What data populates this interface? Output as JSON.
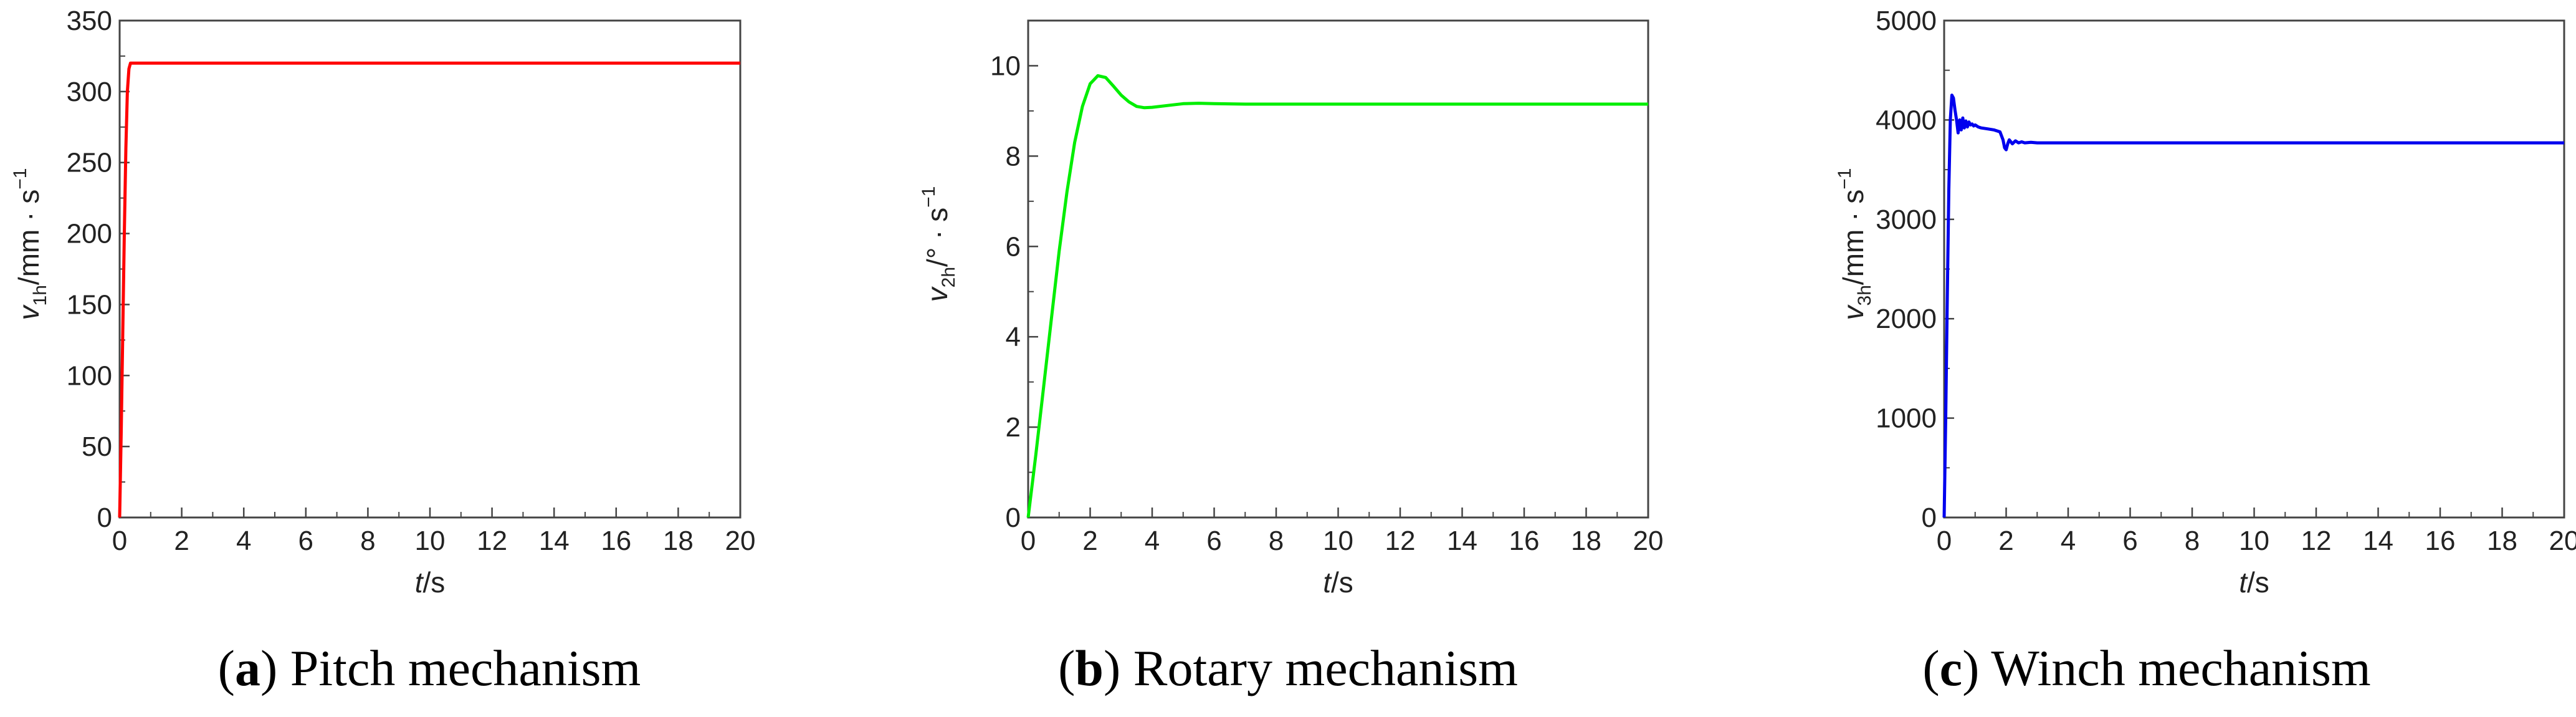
{
  "chart_data": [
    {
      "type": "line",
      "caption": {
        "letter": "a",
        "text": "Pitch mechanism"
      },
      "xlabel": {
        "var": "t",
        "unit": "/s"
      },
      "ylabel": {
        "var": "v",
        "sub": "1h",
        "unit": "/mm · s",
        "sup": "−1"
      },
      "xlim": [
        0,
        20
      ],
      "ylim": [
        0,
        350
      ],
      "xticks": [
        0,
        2,
        4,
        6,
        8,
        10,
        12,
        14,
        16,
        18,
        20
      ],
      "yticks": [
        0,
        50,
        100,
        150,
        200,
        250,
        300,
        350
      ],
      "color": "#ff0000",
      "series": [
        {
          "x": [
            0,
            0.05,
            0.1,
            0.15,
            0.2,
            0.25,
            0.3,
            0.35,
            0.4,
            0.5,
            0.8,
            1.5,
            3,
            6,
            10,
            15,
            20
          ],
          "y": [
            0,
            60,
            130,
            200,
            260,
            300,
            316,
            320,
            320,
            320,
            320,
            320,
            320,
            320,
            320,
            320,
            320
          ]
        }
      ]
    },
    {
      "type": "line",
      "caption": {
        "letter": "b",
        "text": "Rotary mechanism"
      },
      "xlabel": {
        "var": "t",
        "unit": "/s"
      },
      "ylabel": {
        "var": "v",
        "sub": "2h",
        "unit": "/° · s",
        "sup": "−1"
      },
      "xlim": [
        0,
        20
      ],
      "ylim": [
        0,
        11
      ],
      "xticks": [
        0,
        2,
        4,
        6,
        8,
        10,
        12,
        14,
        16,
        18,
        20
      ],
      "yticks": [
        0,
        2,
        4,
        6,
        8,
        10
      ],
      "color": "#00ee00",
      "series": [
        {
          "x": [
            0,
            0.25,
            0.5,
            0.75,
            1.0,
            1.25,
            1.5,
            1.75,
            2.0,
            2.25,
            2.5,
            2.75,
            3.0,
            3.25,
            3.5,
            3.75,
            4.0,
            4.5,
            5.0,
            5.5,
            6.0,
            7.0,
            8.0,
            10,
            14,
            20
          ],
          "y": [
            0,
            1.4,
            2.9,
            4.4,
            5.9,
            7.2,
            8.3,
            9.1,
            9.6,
            9.78,
            9.74,
            9.55,
            9.35,
            9.2,
            9.1,
            9.07,
            9.08,
            9.12,
            9.16,
            9.17,
            9.16,
            9.15,
            9.15,
            9.15,
            9.15,
            9.15
          ]
        }
      ]
    },
    {
      "type": "line",
      "caption": {
        "letter": "c",
        "text": "Winch mechanism"
      },
      "xlabel": {
        "var": "t",
        "unit": "/s"
      },
      "ylabel": {
        "var": "v",
        "sub": "3h",
        "unit": "/mm · s",
        "sup": "−1"
      },
      "xlim": [
        0,
        20
      ],
      "ylim": [
        0,
        5000
      ],
      "xticks": [
        0,
        2,
        4,
        6,
        8,
        10,
        12,
        14,
        16,
        18,
        20
      ],
      "yticks": [
        0,
        1000,
        2000,
        3000,
        4000,
        5000
      ],
      "color": "#0000ee",
      "series": [
        {
          "x": [
            0,
            0.05,
            0.1,
            0.15,
            0.2,
            0.25,
            0.3,
            0.35,
            0.4,
            0.45,
            0.5,
            0.55,
            0.6,
            0.65,
            0.7,
            0.75,
            0.8,
            0.85,
            0.9,
            0.95,
            1.0,
            1.1,
            1.2,
            1.4,
            1.6,
            1.8,
            1.9,
            1.95,
            2.0,
            2.05,
            2.1,
            2.2,
            2.3,
            2.4,
            2.5,
            2.6,
            2.8,
            3.0,
            4,
            6,
            10,
            15,
            20
          ],
          "y": [
            0,
            1000,
            2200,
            3300,
            4000,
            4250,
            4220,
            4100,
            4000,
            3870,
            4000,
            3900,
            4020,
            3920,
            3990,
            3930,
            3980,
            3950,
            3960,
            3940,
            3950,
            3930,
            3920,
            3910,
            3900,
            3880,
            3800,
            3720,
            3700,
            3760,
            3800,
            3760,
            3790,
            3770,
            3780,
            3770,
            3775,
            3770,
            3770,
            3770,
            3770,
            3770,
            3770
          ]
        }
      ]
    }
  ]
}
